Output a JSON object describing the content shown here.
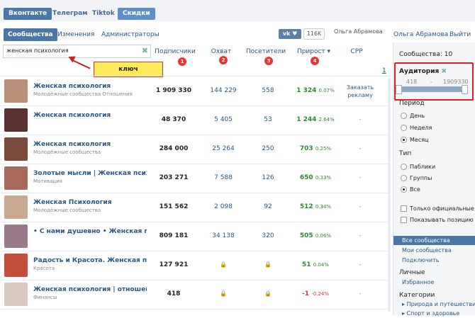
{
  "primary_tabs": [
    "Вконтакте",
    "Телеграм",
    "Tiktok",
    "Скидки"
  ],
  "secondary_tabs": [
    "Сообщества",
    "Изменения",
    "Администраторы"
  ],
  "share": {
    "vk": "vk",
    "count": "116K"
  },
  "user": {
    "image_alt": "Ольга Абрамова",
    "name": "Ольга Абрамова",
    "logout": "Выйти"
  },
  "search": {
    "value": "женская психология"
  },
  "columns": {
    "subs": "Подписчики",
    "reach": "Охват",
    "visits": "Посетители",
    "growth": "Прирост ▾",
    "cpp": "CPP"
  },
  "badges": [
    "1",
    "2",
    "3",
    "4"
  ],
  "callout": "ключ",
  "page": "1",
  "rows": [
    {
      "name": "Женская психология",
      "category": "Молодёжные сообщества Отношения",
      "subs": "1 909 330",
      "reach": "144 229",
      "visits": "558",
      "growth": "1 324",
      "pct": "0.07%",
      "cpp": "Заказать рекламу",
      "thumb": "#b89078",
      "neg": false
    },
    {
      "name": "Женская психология",
      "category": "",
      "subs": "48 370",
      "reach": "5 405",
      "visits": "53",
      "growth": "1 244",
      "pct": "2.64%",
      "cpp": "-",
      "thumb": "#5a3030",
      "neg": false
    },
    {
      "name": "Женская психология",
      "category": "Молодёжные сообщества",
      "subs": "284 000",
      "reach": "25 264",
      "visits": "250",
      "growth": "703",
      "pct": "0.25%",
      "cpp": "-",
      "thumb": "#7a4a3a",
      "neg": false
    },
    {
      "name": "Золотые мысли | Женская психология",
      "category": "Мотивация",
      "subs": "203 271",
      "reach": "7 588",
      "visits": "126",
      "growth": "650",
      "pct": "0.33%",
      "cpp": "-",
      "thumb": "#a86a5a",
      "neg": false
    },
    {
      "name": "Женская Психология",
      "category": "Молодёжные сообщества",
      "subs": "151 562",
      "reach": "2 098",
      "visits": "92",
      "growth": "512",
      "pct": "0.34%",
      "cpp": "-",
      "thumb": "#c8a890",
      "neg": false
    },
    {
      "name": "• С нами душевно • Женская психоло",
      "category": "",
      "subs": "809 181",
      "reach": "34 138",
      "visits": "320",
      "growth": "505",
      "pct": "0.06%",
      "cpp": "-",
      "thumb": "#9a7a8a",
      "neg": false
    },
    {
      "name": "Радость и Красота. Женская психолог",
      "category": "Красота",
      "subs": "127 921",
      "reach": "",
      "visits": "",
      "growth": "51",
      "pct": "0.04%",
      "cpp": "-",
      "thumb": "#c0503a",
      "neg": false
    },
    {
      "name": "Женская психология | отношение к лю",
      "category": "Финансы",
      "subs": "418",
      "reach": "",
      "visits": "",
      "growth": "-1",
      "pct": "-0.24%",
      "cpp": "-",
      "thumb": "#d8c8c0",
      "neg": true
    }
  ],
  "sidebar": {
    "communities": "Сообщества: 10",
    "audience_label": "Аудитория",
    "range_min": "418",
    "range_sep": "-",
    "range_max": "1909330",
    "period_label": "Период",
    "period_options": [
      "День",
      "Неделя",
      "Месяц"
    ],
    "type_label": "Тип",
    "type_options": [
      "Паблики",
      "Группы",
      "Все"
    ],
    "official": "Только официальные",
    "show_position": "Показывать позицию",
    "nav": [
      "Все сообщества",
      "Мои сообщества",
      "Подключить"
    ],
    "personal_label": "Личные",
    "favorites": "Избранное",
    "categories_label": "Категории",
    "category_items": [
      "Природа и путешествия",
      "Спорт и здоровье"
    ]
  }
}
